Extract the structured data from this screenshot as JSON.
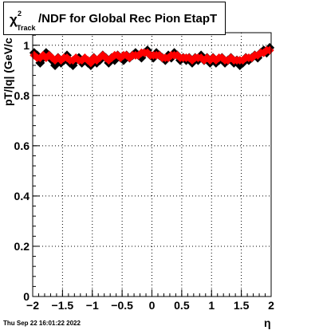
{
  "title": {
    "symbol": "χ",
    "superscript": "2",
    "subscript": "Track",
    "text": "/NDF for Global Rec Pion EtapT"
  },
  "timestamp": "Thu Sep 22 16:01:22 2022",
  "colors": {
    "series_black": "#000000",
    "series_red": "#ff0000",
    "grid": "#000000",
    "background": "#ffffff"
  },
  "chart_data": {
    "type": "scatter",
    "title": "χ²Track/NDF for Global Rec Pion EtapT",
    "xlabel": "η",
    "ylabel": "pT/|q| (GeV/c",
    "xlim": [
      -2,
      2
    ],
    "ylim": [
      0,
      1.05
    ],
    "grid": true,
    "x_ticks": [
      -2,
      -1.5,
      -1,
      -0.5,
      0,
      0.5,
      1,
      1.5,
      2
    ],
    "x_tick_labels": [
      "−2",
      "−1.5",
      "−1",
      "−0.5",
      "0",
      "0.5",
      "1",
      "1.5",
      "2"
    ],
    "y_ticks": [
      0,
      0.2,
      0.4,
      0.6,
      0.8,
      1
    ],
    "y_tick_labels": [
      "0",
      "0.2",
      "0.4",
      "0.6",
      "0.8",
      "1"
    ],
    "series": [
      {
        "color": "#000000",
        "marker": "diamond",
        "x": [
          -1.975,
          -1.925,
          -1.875,
          -1.825,
          -1.775,
          -1.725,
          -1.675,
          -1.625,
          -1.575,
          -1.525,
          -1.475,
          -1.425,
          -1.375,
          -1.325,
          -1.275,
          -1.225,
          -1.175,
          -1.125,
          -1.075,
          -1.025,
          -0.975,
          -0.925,
          -0.875,
          -0.825,
          -0.775,
          -0.725,
          -0.675,
          -0.625,
          -0.575,
          -0.525,
          -0.475,
          -0.425,
          -0.375,
          -0.325,
          -0.275,
          -0.225,
          -0.175,
          -0.125,
          -0.075,
          -0.025,
          0.025,
          0.075,
          0.125,
          0.175,
          0.225,
          0.275,
          0.325,
          0.375,
          0.425,
          0.475,
          0.525,
          0.575,
          0.625,
          0.675,
          0.725,
          0.775,
          0.825,
          0.875,
          0.925,
          0.975,
          1.025,
          1.075,
          1.125,
          1.175,
          1.225,
          1.275,
          1.325,
          1.375,
          1.425,
          1.475,
          1.525,
          1.575,
          1.625,
          1.675,
          1.725,
          1.775,
          1.825,
          1.875,
          1.925,
          1.975
        ],
        "y": [
          0.97,
          0.96,
          0.93,
          0.95,
          0.97,
          0.96,
          0.94,
          0.92,
          0.95,
          0.93,
          0.94,
          0.96,
          0.93,
          0.92,
          0.94,
          0.95,
          0.93,
          0.94,
          0.93,
          0.92,
          0.95,
          0.93,
          0.94,
          0.96,
          0.95,
          0.93,
          0.95,
          0.94,
          0.96,
          0.95,
          0.94,
          0.96,
          0.95,
          0.96,
          0.97,
          0.96,
          0.95,
          0.97,
          0.98,
          0.96,
          0.95,
          0.97,
          0.96,
          0.95,
          0.94,
          0.96,
          0.95,
          0.97,
          0.96,
          0.94,
          0.95,
          0.94,
          0.95,
          0.93,
          0.95,
          0.94,
          0.96,
          0.94,
          0.95,
          0.93,
          0.95,
          0.93,
          0.94,
          0.95,
          0.93,
          0.94,
          0.95,
          0.93,
          0.94,
          0.92,
          0.93,
          0.95,
          0.94,
          0.95,
          0.96,
          0.95,
          0.97,
          0.98,
          0.97,
          0.99
        ]
      },
      {
        "color": "#ff0000",
        "marker": "diamond",
        "x": [
          -1.975,
          -1.925,
          -1.875,
          -1.825,
          -1.775,
          -1.725,
          -1.675,
          -1.625,
          -1.575,
          -1.525,
          -1.475,
          -1.425,
          -1.375,
          -1.325,
          -1.275,
          -1.225,
          -1.175,
          -1.125,
          -1.075,
          -1.025,
          -0.975,
          -0.925,
          -0.875,
          -0.825,
          -0.775,
          -0.725,
          -0.675,
          -0.625,
          -0.575,
          -0.525,
          -0.475,
          -0.425,
          -0.375,
          -0.325,
          -0.275,
          -0.225,
          -0.175,
          -0.125,
          -0.075,
          -0.025,
          0.025,
          0.075,
          0.125,
          0.175,
          0.225,
          0.275,
          0.325,
          0.375,
          0.425,
          0.475,
          0.525,
          0.575,
          0.625,
          0.675,
          0.725,
          0.775,
          0.825,
          0.875,
          0.925,
          0.975,
          1.025,
          1.075,
          1.125,
          1.175,
          1.225,
          1.275,
          1.325,
          1.375,
          1.425,
          1.475,
          1.525,
          1.575,
          1.625,
          1.675,
          1.725,
          1.775,
          1.825,
          1.875,
          1.925,
          1.975
        ],
        "y": [
          0.96,
          0.95,
          0.95,
          0.96,
          0.95,
          0.96,
          0.95,
          0.94,
          0.95,
          0.94,
          0.95,
          0.95,
          0.94,
          0.94,
          0.95,
          0.94,
          0.94,
          0.95,
          0.94,
          0.93,
          0.95,
          0.94,
          0.95,
          0.96,
          0.95,
          0.94,
          0.95,
          0.96,
          0.96,
          0.95,
          0.96,
          0.96,
          0.95,
          0.96,
          0.96,
          0.96,
          0.97,
          0.97,
          0.97,
          0.96,
          0.96,
          0.96,
          0.96,
          0.95,
          0.95,
          0.95,
          0.96,
          0.96,
          0.96,
          0.95,
          0.95,
          0.95,
          0.95,
          0.94,
          0.95,
          0.95,
          0.95,
          0.94,
          0.95,
          0.94,
          0.95,
          0.94,
          0.95,
          0.95,
          0.94,
          0.94,
          0.95,
          0.94,
          0.94,
          0.94,
          0.94,
          0.95,
          0.95,
          0.95,
          0.96,
          0.96,
          0.97,
          0.97,
          0.98,
          0.98
        ]
      }
    ]
  }
}
